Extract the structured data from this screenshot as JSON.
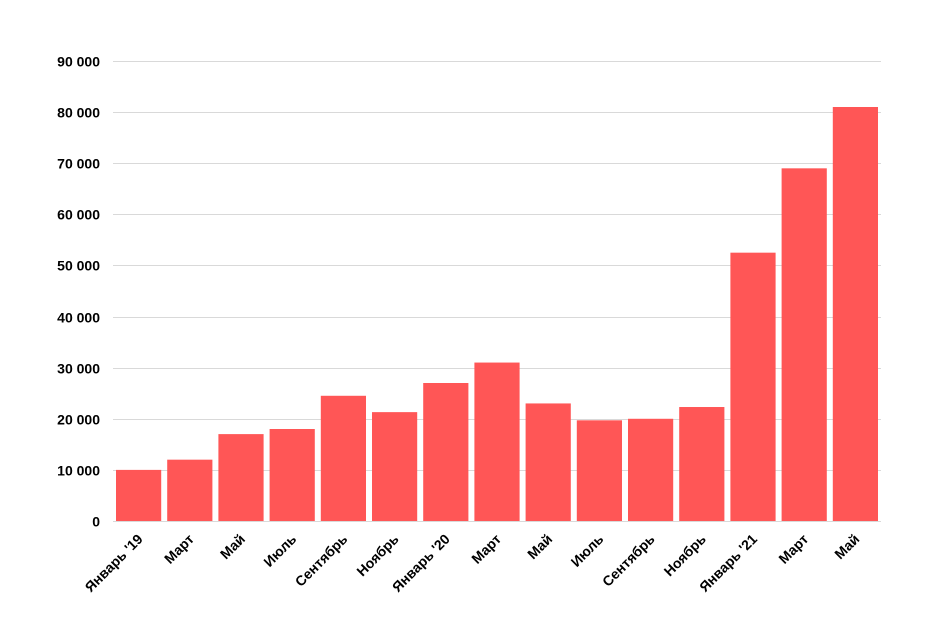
{
  "chart_data": {
    "type": "bar",
    "title": "",
    "xlabel": "",
    "ylabel": "",
    "categories": [
      "Январь '19",
      "Март",
      "Май",
      "Июль",
      "Сентябрь",
      "Ноябрь",
      "Январь '20",
      "Март",
      "Май",
      "Июль",
      "Сентябрь",
      "Ноябрь",
      "Январь '21",
      "Март",
      "Май"
    ],
    "values": [
      10000,
      12000,
      17000,
      18000,
      24500,
      21300,
      27000,
      31000,
      23000,
      19700,
      20000,
      22300,
      52500,
      69000,
      81000
    ],
    "ylim": [
      0,
      90000
    ],
    "yticks": [
      0,
      10000,
      20000,
      30000,
      40000,
      50000,
      60000,
      70000,
      80000,
      90000
    ],
    "ytick_labels": [
      "0",
      "10 000",
      "20 000",
      "30 000",
      "40 000",
      "50 000",
      "60 000",
      "70 000",
      "80 000",
      "90 000"
    ],
    "grid": true,
    "legend": "none",
    "colors": {
      "bar": "#ff5656",
      "grid": "#d9d9d9",
      "text": "#000000"
    }
  }
}
